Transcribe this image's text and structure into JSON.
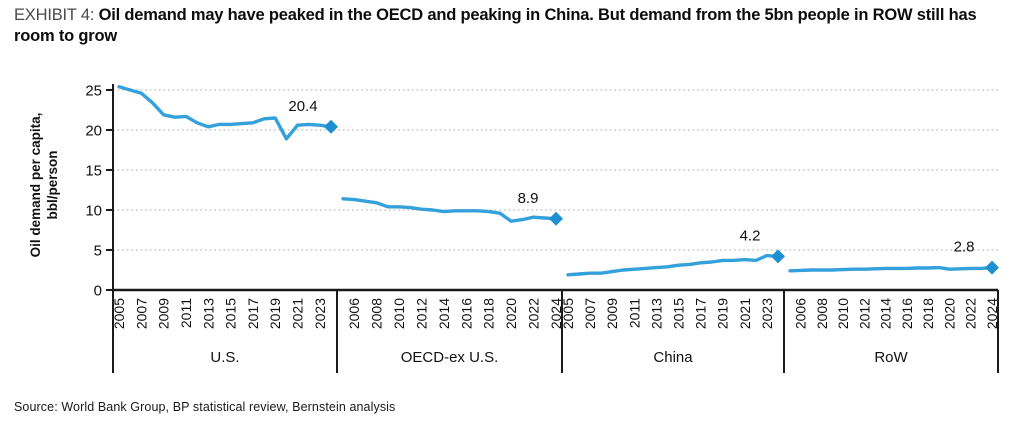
{
  "header": {
    "exhibit_label": "EXHIBIT 4:",
    "title": "Oil demand may have peaked in the OECD and peaking in China. But demand from the 5bn people in ROW still has room to grow"
  },
  "source": "Source: World Bank Group, BP statistical review, Bernstein analysis",
  "colors": {
    "line": "#35A1DC",
    "marker": "#1E8FD0",
    "grid": "#c6c6c6",
    "axis": "#1a1a1a",
    "text": "#111111"
  },
  "chart_data": {
    "type": "line",
    "title": "",
    "ylabel_line1": "Oil demand per capita,",
    "ylabel_line2": "bbl/person",
    "ylim": [
      0,
      25
    ],
    "yticks": [
      0,
      5,
      10,
      15,
      20,
      25
    ],
    "grid": "horizontal-dotted",
    "legend": "none",
    "x": [
      2005,
      2006,
      2007,
      2008,
      2009,
      2010,
      2011,
      2012,
      2013,
      2014,
      2015,
      2016,
      2017,
      2018,
      2019,
      2020,
      2021,
      2022,
      2023,
      2024
    ],
    "panels": [
      {
        "label": "U.S.",
        "tick_years": [
          "2005",
          "2007",
          "2009",
          "2011",
          "2013",
          "2015",
          "2017",
          "2019",
          "2021",
          "2023"
        ],
        "values": [
          25.4,
          25.0,
          24.6,
          23.4,
          21.9,
          21.6,
          21.7,
          20.9,
          20.4,
          20.7,
          20.7,
          20.8,
          20.9,
          21.4,
          21.5,
          18.9,
          20.6,
          20.7,
          20.6,
          20.4
        ],
        "end_label": "20.4"
      },
      {
        "label": "OECD-ex U.S.",
        "tick_years": [
          "2006",
          "2008",
          "2010",
          "2012",
          "2014",
          "2016",
          "2018",
          "2020",
          "2022",
          "2024"
        ],
        "values": [
          11.4,
          11.3,
          11.1,
          10.9,
          10.4,
          10.4,
          10.3,
          10.1,
          10.0,
          9.8,
          9.9,
          9.9,
          9.9,
          9.8,
          9.6,
          8.6,
          8.8,
          9.1,
          9.0,
          8.9
        ],
        "end_label": "8.9"
      },
      {
        "label": "China",
        "tick_years": [
          "2005",
          "2007",
          "2009",
          "2011",
          "2013",
          "2015",
          "2017",
          "2019",
          "2021",
          "2023"
        ],
        "values": [
          1.9,
          2.0,
          2.1,
          2.1,
          2.3,
          2.5,
          2.6,
          2.7,
          2.8,
          2.9,
          3.1,
          3.2,
          3.4,
          3.5,
          3.7,
          3.7,
          3.8,
          3.7,
          4.3,
          4.2
        ],
        "end_label": "4.2"
      },
      {
        "label": "RoW",
        "tick_years": [
          "2006",
          "2008",
          "2010",
          "2012",
          "2014",
          "2016",
          "2018",
          "2020",
          "2022",
          "2024"
        ],
        "values": [
          2.4,
          2.45,
          2.5,
          2.5,
          2.5,
          2.55,
          2.6,
          2.6,
          2.65,
          2.7,
          2.7,
          2.7,
          2.75,
          2.75,
          2.8,
          2.6,
          2.65,
          2.7,
          2.7,
          2.8
        ],
        "end_label": "2.8"
      }
    ]
  }
}
